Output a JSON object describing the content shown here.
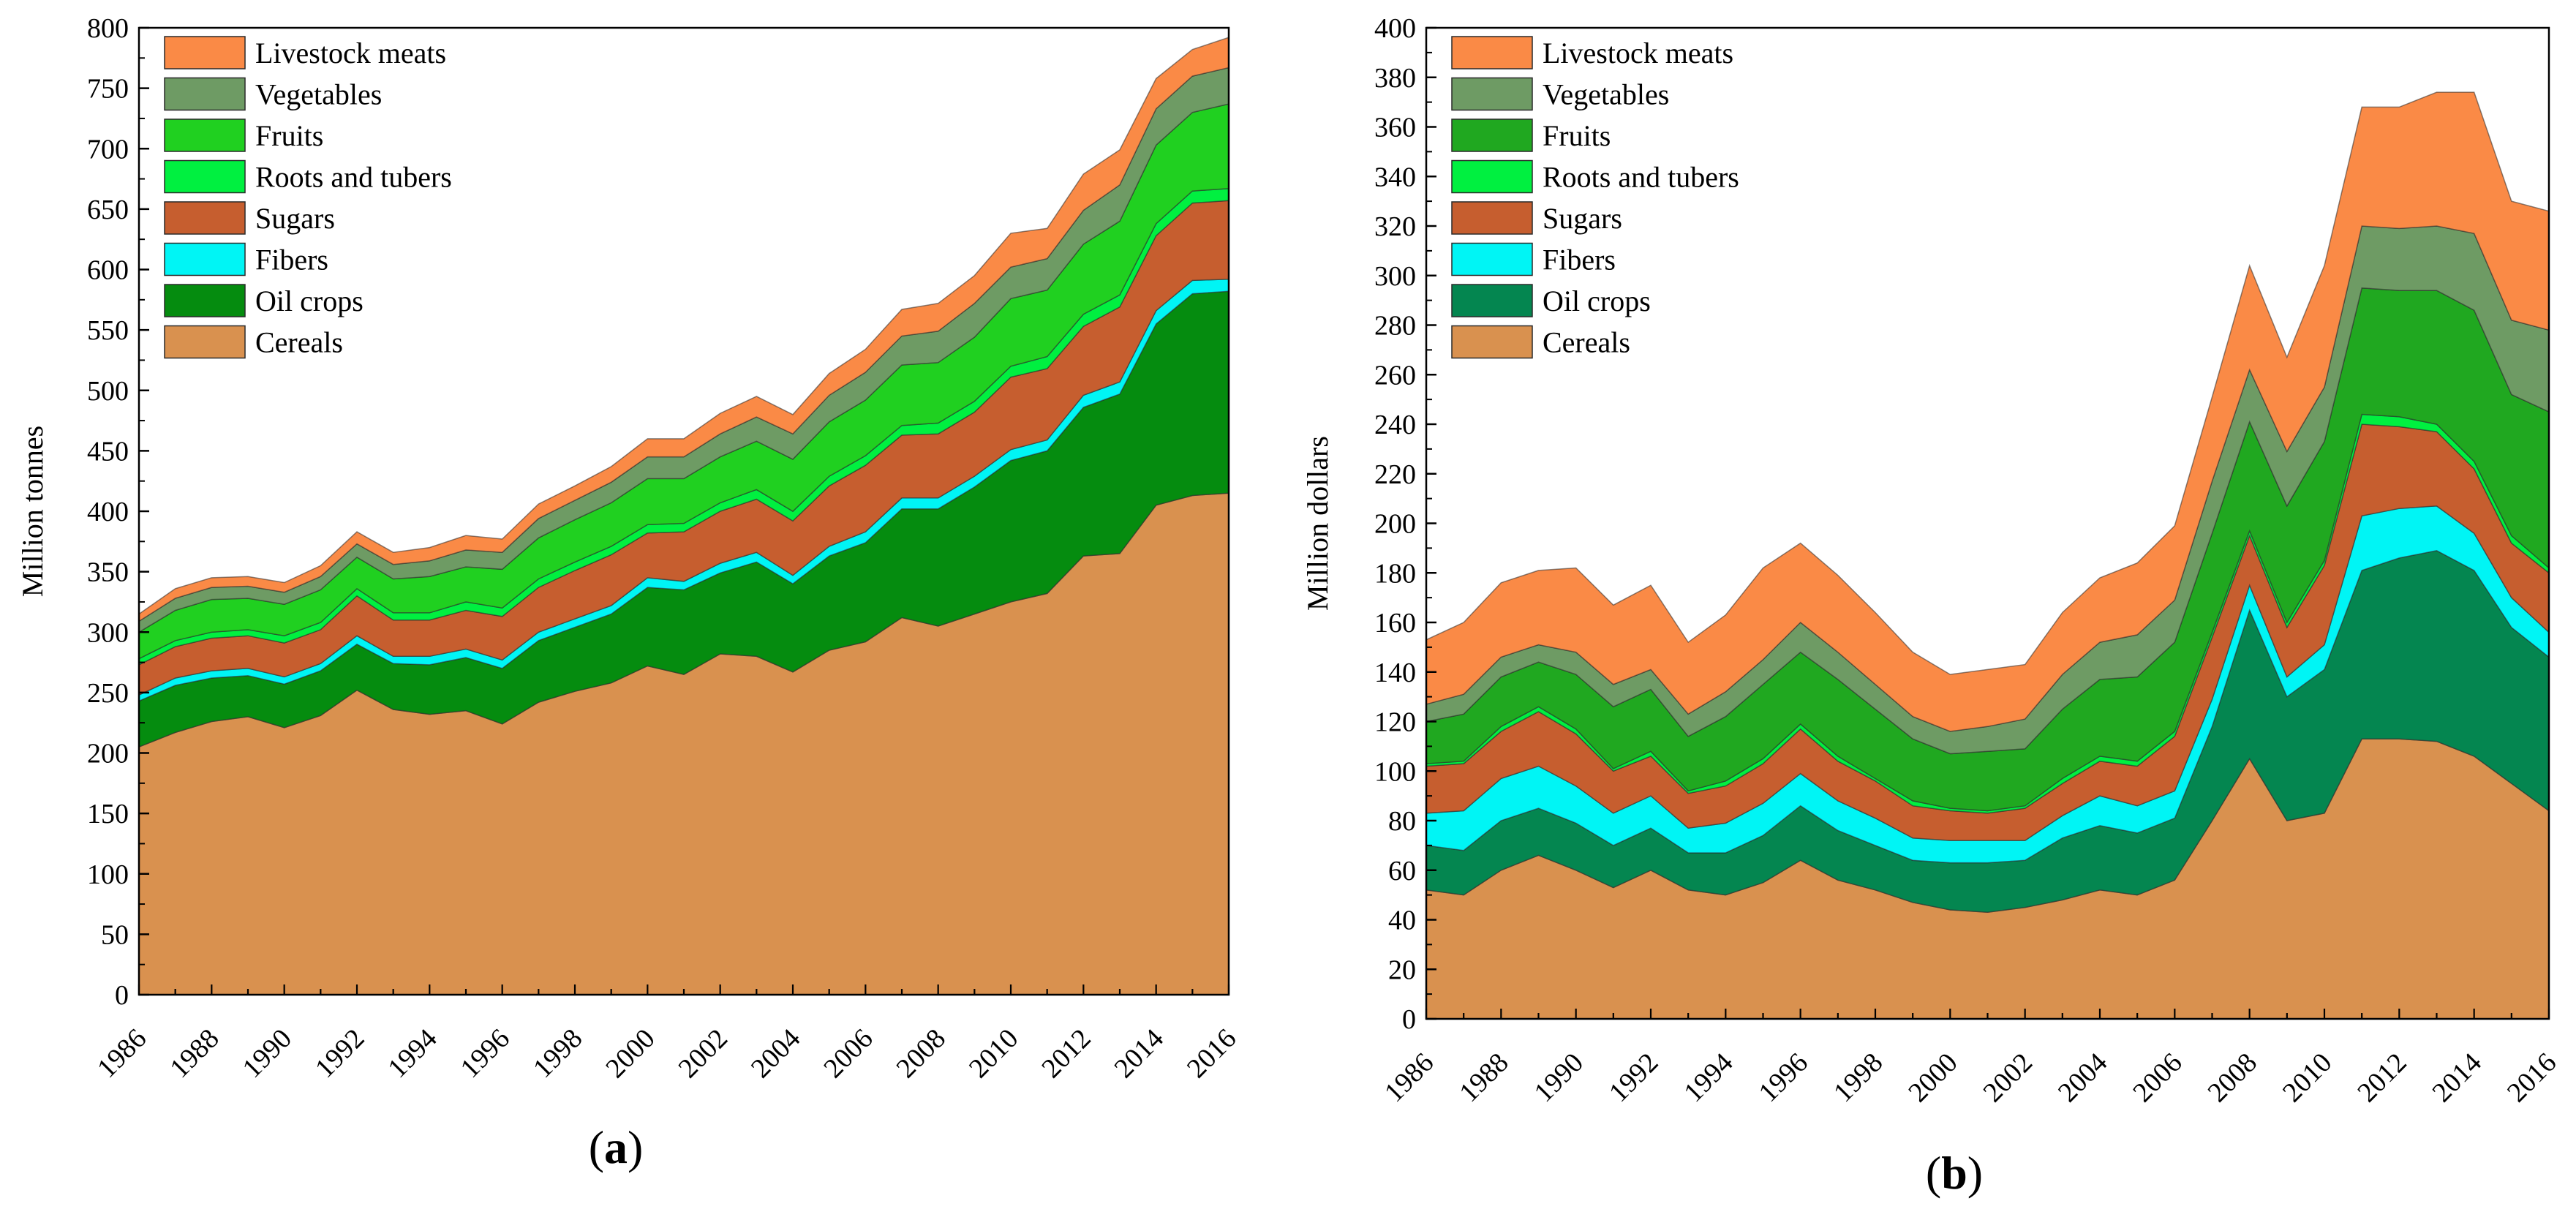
{
  "chart_data": [
    {
      "id": "a",
      "type": "area",
      "stacked": true,
      "title": "",
      "panel_label": "(a)",
      "xlabel": "",
      "ylabel": "Million tonnes",
      "ylim": [
        0,
        800
      ],
      "yticks": [
        0,
        50,
        100,
        150,
        200,
        250,
        300,
        350,
        400,
        450,
        500,
        550,
        600,
        650,
        700,
        750,
        800
      ],
      "xlim": [
        1986,
        2016
      ],
      "xticks": [
        1986,
        1988,
        1990,
        1992,
        1994,
        1996,
        1998,
        2000,
        2002,
        2004,
        2006,
        2008,
        2010,
        2012,
        2014,
        2016
      ],
      "years": [
        1986,
        1987,
        1988,
        1989,
        1990,
        1991,
        1992,
        1993,
        1994,
        1995,
        1996,
        1997,
        1998,
        1999,
        2000,
        2001,
        2002,
        2003,
        2004,
        2005,
        2006,
        2007,
        2008,
        2009,
        2010,
        2011,
        2012,
        2013,
        2014,
        2015,
        2016
      ],
      "legend_position": "top-left",
      "legend_order": [
        "Livestock meats",
        "Vegetables",
        "Fruits",
        "Roots and tubers",
        "Sugars",
        "Fibers",
        "Oil crops",
        "Cereals"
      ],
      "series": [
        {
          "name": "Cereals",
          "color": "#D9914F",
          "values": [
            205,
            217,
            226,
            230,
            221,
            231,
            252,
            236,
            232,
            235,
            224,
            242,
            251,
            258,
            272,
            265,
            282,
            280,
            267,
            285,
            292,
            312,
            305,
            315,
            325,
            332,
            363,
            365,
            405,
            413,
            415
          ]
        },
        {
          "name": "Oil crops",
          "color": "#058C0F",
          "values": [
            38,
            39,
            36,
            34,
            36,
            37,
            38,
            38,
            41,
            44,
            46,
            51,
            53,
            57,
            65,
            70,
            67,
            78,
            73,
            78,
            82,
            90,
            97,
            105,
            117,
            118,
            123,
            132,
            150,
            167,
            167
          ]
        },
        {
          "name": "Fibers",
          "color": "#00F5F5",
          "values": [
            5,
            6,
            6,
            6,
            6,
            6,
            7,
            6,
            7,
            7,
            7,
            7,
            7,
            7,
            8,
            7,
            8,
            8,
            7,
            8,
            9,
            9,
            9,
            9,
            9,
            9,
            10,
            10,
            11,
            11,
            10
          ]
        },
        {
          "name": "Sugars",
          "color": "#C65E2F",
          "values": [
            25,
            26,
            27,
            27,
            28,
            28,
            33,
            30,
            30,
            32,
            36,
            37,
            40,
            42,
            37,
            41,
            43,
            44,
            45,
            50,
            55,
            52,
            53,
            53,
            60,
            59,
            57,
            62,
            62,
            64,
            65
          ]
        },
        {
          "name": "Roots and tubers",
          "color": "#00F040",
          "values": [
            5,
            5,
            5,
            5,
            6,
            6,
            6,
            6,
            6,
            7,
            7,
            7,
            7,
            7,
            7,
            7,
            7,
            8,
            8,
            8,
            8,
            8,
            9,
            9,
            9,
            10,
            10,
            10,
            10,
            10,
            10
          ]
        },
        {
          "name": "Fruits",
          "color": "#20D020",
          "values": [
            22,
            25,
            27,
            26,
            26,
            27,
            26,
            28,
            30,
            29,
            32,
            34,
            35,
            36,
            38,
            37,
            38,
            40,
            43,
            45,
            46,
            50,
            50,
            53,
            56,
            55,
            58,
            61,
            65,
            65,
            70
          ]
        },
        {
          "name": "Vegetables",
          "color": "#6E9B64",
          "values": [
            9,
            10,
            10,
            10,
            10,
            11,
            11,
            12,
            13,
            14,
            14,
            16,
            16,
            17,
            18,
            18,
            19,
            20,
            21,
            22,
            23,
            24,
            26,
            28,
            26,
            26,
            28,
            30,
            30,
            30,
            30
          ]
        },
        {
          "name": "Livestock meats",
          "color": "#FA8A46",
          "values": [
            6,
            8,
            8,
            8,
            8,
            9,
            10,
            10,
            11,
            12,
            11,
            12,
            12,
            13,
            15,
            15,
            17,
            17,
            16,
            18,
            19,
            22,
            23,
            23,
            28,
            25,
            30,
            29,
            25,
            22,
            25
          ]
        }
      ]
    },
    {
      "id": "b",
      "type": "area",
      "stacked": true,
      "title": "",
      "panel_label": "(b)",
      "xlabel": "",
      "ylabel": "Million dollars",
      "ylim": [
        0,
        400
      ],
      "yticks": [
        0,
        20,
        40,
        60,
        80,
        100,
        120,
        140,
        160,
        180,
        200,
        220,
        240,
        260,
        280,
        300,
        320,
        340,
        360,
        380,
        400
      ],
      "xlim": [
        1986,
        2016
      ],
      "xticks": [
        1986,
        1988,
        1990,
        1992,
        1994,
        1996,
        1998,
        2000,
        2002,
        2004,
        2006,
        2008,
        2010,
        2012,
        2014,
        2016
      ],
      "years": [
        1986,
        1987,
        1988,
        1989,
        1990,
        1991,
        1992,
        1993,
        1994,
        1995,
        1996,
        1997,
        1998,
        1999,
        2000,
        2001,
        2002,
        2003,
        2004,
        2005,
        2006,
        2007,
        2008,
        2009,
        2010,
        2011,
        2012,
        2013,
        2014,
        2015,
        2016
      ],
      "legend_position": "top-left",
      "legend_order": [
        "Livestock meats",
        "Vegetables",
        "Fruits",
        "Roots and tubers",
        "Sugars",
        "Fibers",
        "Oil crops",
        "Cereals"
      ],
      "series": [
        {
          "name": "Cereals",
          "color": "#D9914F",
          "values": [
            52,
            50,
            60,
            66,
            60,
            53,
            60,
            52,
            50,
            55,
            64,
            56,
            52,
            47,
            44,
            43,
            45,
            48,
            52,
            50,
            56,
            80,
            105,
            80,
            83,
            113,
            113,
            112,
            106,
            95,
            84
          ]
        },
        {
          "name": "Oil crops",
          "color": "#048650",
          "values": [
            18,
            18,
            20,
            19,
            19,
            17,
            17,
            15,
            17,
            19,
            22,
            20,
            18,
            17,
            19,
            20,
            19,
            25,
            26,
            25,
            25,
            38,
            60,
            50,
            58,
            68,
            73,
            77,
            75,
            63,
            62
          ]
        },
        {
          "name": "Fibers",
          "color": "#00F5F5",
          "values": [
            13,
            16,
            17,
            17,
            15,
            13,
            13,
            10,
            12,
            13,
            13,
            12,
            11,
            9,
            9,
            9,
            8,
            9,
            12,
            11,
            11,
            11,
            10,
            8,
            10,
            22,
            20,
            18,
            15,
            12,
            10
          ]
        },
        {
          "name": "Sugars",
          "color": "#C65E2F",
          "values": [
            19,
            19,
            19,
            22,
            21,
            17,
            16,
            14,
            15,
            16,
            18,
            16,
            15,
            13,
            12,
            11,
            13,
            13,
            14,
            16,
            22,
            25,
            20,
            20,
            32,
            37,
            33,
            30,
            26,
            22,
            24
          ]
        },
        {
          "name": "Roots and tubers",
          "color": "#00F040",
          "values": [
            1,
            1,
            2,
            2,
            2,
            1,
            2,
            1,
            2,
            2,
            2,
            2,
            1,
            2,
            1,
            1,
            1,
            2,
            2,
            2,
            2,
            2,
            2,
            2,
            2,
            4,
            4,
            3,
            3,
            3,
            2
          ]
        },
        {
          "name": "Fruits",
          "color": "#20A820",
          "values": [
            17,
            19,
            20,
            18,
            22,
            25,
            25,
            22,
            26,
            30,
            29,
            31,
            28,
            25,
            22,
            24,
            23,
            28,
            31,
            34,
            36,
            40,
            44,
            47,
            48,
            51,
            51,
            54,
            61,
            57,
            63
          ]
        },
        {
          "name": "Vegetables",
          "color": "#6E9B64",
          "values": [
            7,
            8,
            8,
            7,
            9,
            9,
            8,
            9,
            10,
            10,
            12,
            11,
            10,
            9,
            9,
            10,
            12,
            14,
            15,
            17,
            17,
            21,
            21,
            22,
            22,
            25,
            25,
            26,
            31,
            30,
            33
          ]
        },
        {
          "name": "Livestock meats",
          "color": "#FA8A46",
          "values": [
            26,
            29,
            30,
            30,
            34,
            32,
            34,
            29,
            31,
            37,
            32,
            31,
            29,
            26,
            23,
            23,
            22,
            25,
            26,
            29,
            30,
            34,
            42,
            38,
            49,
            48,
            49,
            54,
            57,
            48,
            48
          ]
        }
      ]
    }
  ]
}
